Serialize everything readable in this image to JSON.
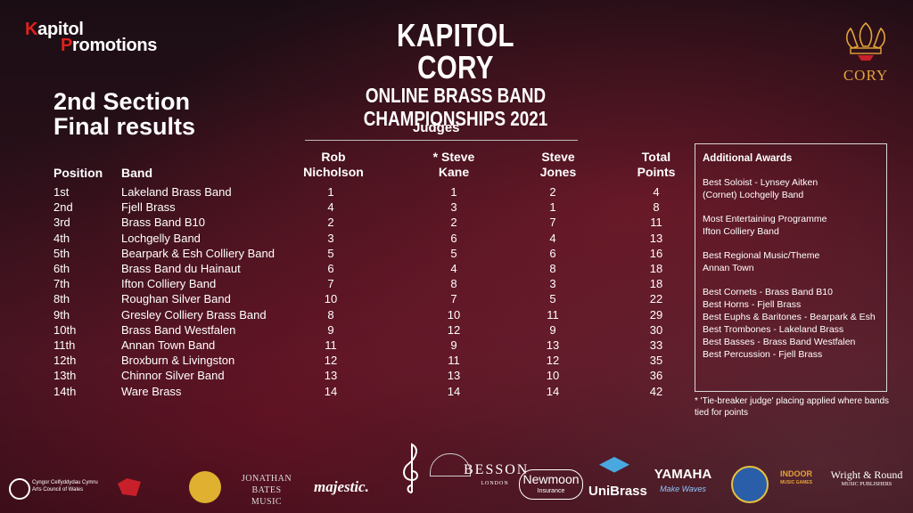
{
  "logo": {
    "line1_red": "K",
    "line1_rest": "apitol",
    "line2_red": "P",
    "line2_rest": "romotions"
  },
  "title": {
    "line1": "KAPITOL CORY",
    "line2": "ONLINE BRASS BAND",
    "line3": "CHAMPIONSHIPS 2021"
  },
  "cory_logo": {
    "word": "CORY"
  },
  "section": {
    "line1": "2nd Section",
    "line2": "Final results"
  },
  "judges_label": "Judges",
  "headers": {
    "position": "Position",
    "band": "Band",
    "judge1": [
      "Rob",
      "Nicholson"
    ],
    "judge2": [
      "* Steve",
      "Kane"
    ],
    "judge3": [
      "Steve",
      "Jones"
    ],
    "total": [
      "Total",
      "Points"
    ]
  },
  "results": [
    {
      "position": "1st",
      "band": "Lakeland Brass Band",
      "j1": "1",
      "j2": "1",
      "j3": "2",
      "total": "4"
    },
    {
      "position": "2nd",
      "band": "Fjell Brass",
      "j1": "4",
      "j2": "3",
      "j3": "1",
      "total": "8"
    },
    {
      "position": "3rd",
      "band": "Brass Band B10",
      "j1": "2",
      "j2": "2",
      "j3": "7",
      "total": "11"
    },
    {
      "position": "4th",
      "band": "Lochgelly Band",
      "j1": "3",
      "j2": "6",
      "j3": "4",
      "total": "13"
    },
    {
      "position": "5th",
      "band": "Bearpark & Esh Colliery Band",
      "j1": "5",
      "j2": "5",
      "j3": "6",
      "total": "16"
    },
    {
      "position": "6th",
      "band": "Brass Band du Hainaut",
      "j1": "6",
      "j2": "4",
      "j3": "8",
      "total": "18"
    },
    {
      "position": "7th",
      "band": "Ifton Colliery Band",
      "j1": "7",
      "j2": "8",
      "j3": "3",
      "total": "18"
    },
    {
      "position": "8th",
      "band": "Roughan Silver Band",
      "j1": "10",
      "j2": "7",
      "j3": "5",
      "total": "22"
    },
    {
      "position": "9th",
      "band": "Gresley Colliery Brass Band",
      "j1": "8",
      "j2": "10",
      "j3": "11",
      "total": "29"
    },
    {
      "position": "10th",
      "band": "Brass Band Westfalen",
      "j1": "9",
      "j2": "12",
      "j3": "9",
      "total": "30"
    },
    {
      "position": "11th",
      "band": "Annan Town Band",
      "j1": "11",
      "j2": "9",
      "j3": "13",
      "total": "33"
    },
    {
      "position": "12th",
      "band": "Broxburn & Livingston",
      "j1": "12",
      "j2": "11",
      "j3": "12",
      "total": "35"
    },
    {
      "position": "13th",
      "band": "Chinnor Silver Band",
      "j1": "13",
      "j2": "13",
      "j3": "10",
      "total": "36"
    },
    {
      "position": "14th",
      "band": "Ware Brass",
      "j1": "14",
      "j2": "14",
      "j3": "14",
      "total": "42"
    }
  ],
  "awards": {
    "heading": "Additional Awards",
    "blocks": [
      [
        "Best Soloist - Lynsey Aitken",
        "(Cornet) Lochgelly Band"
      ],
      [
        "Most Entertaining Programme",
        "Ifton Colliery Band"
      ],
      [
        "Best Regional Music/Theme",
        "Annan Town"
      ],
      [
        "Best Cornets - Brass Band B10",
        "Best Horns - Fjell Brass",
        "Best Euphs & Baritones - Bearpark & Esh",
        "Best Trombones - Lakeland Brass",
        "Best Basses - Brass Band Westfalen",
        "Best Percussion - Fjell Brass"
      ]
    ]
  },
  "footnote": "* 'Tie-breaker judge' placing applied where bands tied for points",
  "sponsors": {
    "arts_council": [
      "Cyngor Celfyddydau Cymru",
      "Arts Council of Wales"
    ],
    "jonathan_bates": [
      "JONATHAN BATES",
      "MUSIC"
    ],
    "majestic": "majestic.",
    "besson": [
      "BESSON",
      "LONDON"
    ],
    "newmoon": [
      "Newmoon",
      "Insurance"
    ],
    "unibrass": "UniBrass",
    "yamaha": [
      "YAMAHA",
      "Make Waves"
    ],
    "indoor": [
      "INDOOR",
      "MUSIC GAMES"
    ],
    "wright_round": [
      "Wright & Round",
      "MUSIC PUBLISHERS"
    ]
  }
}
